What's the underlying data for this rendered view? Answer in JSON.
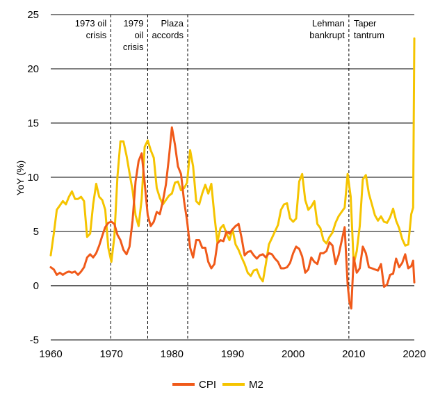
{
  "chart_data": {
    "type": "line",
    "title": "",
    "xlabel": "",
    "ylabel": "YoY (%)",
    "xlim": [
      1960,
      2020
    ],
    "ylim": [
      -5,
      25
    ],
    "x_ticks": [
      1960,
      1970,
      1980,
      1990,
      2000,
      2010,
      2020
    ],
    "y_ticks": [
      -5,
      0,
      5,
      10,
      15,
      20,
      25
    ],
    "grid": "horizontal",
    "legend": "bottom-center",
    "colors": {
      "CPI": "#f05a1a",
      "M2": "#f5c400"
    },
    "events": [
      {
        "year": 1969.9,
        "label": [
          "1973 oil",
          "crisis"
        ]
      },
      {
        "year": 1976.0,
        "label": [
          "1979",
          "oil",
          "crisis"
        ]
      },
      {
        "year": 1982.6,
        "label": [
          "Plaza",
          "accords"
        ]
      },
      {
        "year": 2009.2,
        "label": [
          "Lehman",
          "bankrupt"
        ]
      }
    ],
    "extra_labels": [
      {
        "label": [
          "Taper",
          "tantrum"
        ]
      }
    ],
    "series": [
      {
        "name": "CPI",
        "points": [
          [
            1960.0,
            1.7
          ],
          [
            1960.5,
            1.5
          ],
          [
            1961.0,
            1.0
          ],
          [
            1961.5,
            1.2
          ],
          [
            1962.0,
            1.0
          ],
          [
            1962.5,
            1.2
          ],
          [
            1963.0,
            1.3
          ],
          [
            1963.5,
            1.2
          ],
          [
            1964.0,
            1.3
          ],
          [
            1964.5,
            1.0
          ],
          [
            1965.0,
            1.3
          ],
          [
            1965.5,
            1.7
          ],
          [
            1966.0,
            2.6
          ],
          [
            1966.5,
            2.9
          ],
          [
            1967.0,
            2.6
          ],
          [
            1967.5,
            3.0
          ],
          [
            1968.0,
            3.7
          ],
          [
            1968.5,
            4.6
          ],
          [
            1969.0,
            5.4
          ],
          [
            1969.5,
            5.8
          ],
          [
            1970.0,
            5.9
          ],
          [
            1970.5,
            5.7
          ],
          [
            1971.0,
            4.7
          ],
          [
            1971.5,
            4.2
          ],
          [
            1972.0,
            3.3
          ],
          [
            1972.5,
            2.9
          ],
          [
            1973.0,
            3.6
          ],
          [
            1973.5,
            6.0
          ],
          [
            1974.0,
            9.6
          ],
          [
            1974.5,
            11.5
          ],
          [
            1975.0,
            12.2
          ],
          [
            1975.5,
            9.5
          ],
          [
            1976.0,
            6.5
          ],
          [
            1976.5,
            5.5
          ],
          [
            1977.0,
            5.9
          ],
          [
            1977.5,
            6.8
          ],
          [
            1978.0,
            6.6
          ],
          [
            1978.5,
            7.8
          ],
          [
            1979.0,
            9.3
          ],
          [
            1979.5,
            11.8
          ],
          [
            1980.0,
            14.6
          ],
          [
            1980.5,
            13.0
          ],
          [
            1981.0,
            11.0
          ],
          [
            1981.5,
            10.3
          ],
          [
            1982.0,
            7.8
          ],
          [
            1982.5,
            6.0
          ],
          [
            1983.0,
            3.5
          ],
          [
            1983.5,
            2.6
          ],
          [
            1984.0,
            4.2
          ],
          [
            1984.5,
            4.2
          ],
          [
            1985.0,
            3.5
          ],
          [
            1985.5,
            3.5
          ],
          [
            1986.0,
            2.2
          ],
          [
            1986.5,
            1.6
          ],
          [
            1987.0,
            2.0
          ],
          [
            1987.5,
            3.9
          ],
          [
            1988.0,
            4.2
          ],
          [
            1988.5,
            4.1
          ],
          [
            1989.0,
            5.0
          ],
          [
            1989.5,
            4.8
          ],
          [
            1990.0,
            5.2
          ],
          [
            1990.5,
            5.5
          ],
          [
            1991.0,
            5.7
          ],
          [
            1991.5,
            4.4
          ],
          [
            1992.0,
            2.8
          ],
          [
            1992.5,
            3.1
          ],
          [
            1993.0,
            3.2
          ],
          [
            1993.5,
            2.8
          ],
          [
            1994.0,
            2.5
          ],
          [
            1994.5,
            2.8
          ],
          [
            1995.0,
            2.9
          ],
          [
            1995.5,
            2.6
          ],
          [
            1996.0,
            3.0
          ],
          [
            1996.5,
            2.9
          ],
          [
            1997.0,
            2.5
          ],
          [
            1997.5,
            2.2
          ],
          [
            1998.0,
            1.6
          ],
          [
            1998.5,
            1.6
          ],
          [
            1999.0,
            1.7
          ],
          [
            1999.5,
            2.1
          ],
          [
            2000.0,
            3.0
          ],
          [
            2000.5,
            3.6
          ],
          [
            2001.0,
            3.4
          ],
          [
            2001.5,
            2.7
          ],
          [
            2002.0,
            1.2
          ],
          [
            2002.5,
            1.5
          ],
          [
            2003.0,
            2.6
          ],
          [
            2003.5,
            2.2
          ],
          [
            2004.0,
            2.0
          ],
          [
            2004.5,
            3.0
          ],
          [
            2005.0,
            3.0
          ],
          [
            2005.5,
            3.2
          ],
          [
            2006.0,
            4.0
          ],
          [
            2006.5,
            3.7
          ],
          [
            2007.0,
            2.0
          ],
          [
            2007.5,
            2.8
          ],
          [
            2008.0,
            4.1
          ],
          [
            2008.5,
            5.4
          ],
          [
            2009.0,
            0.1
          ],
          [
            2009.3,
            -1.5
          ],
          [
            2009.6,
            -2.1
          ],
          [
            2010.0,
            2.6
          ],
          [
            2010.5,
            1.2
          ],
          [
            2011.0,
            1.6
          ],
          [
            2011.5,
            3.6
          ],
          [
            2012.0,
            3.0
          ],
          [
            2012.5,
            1.7
          ],
          [
            2013.0,
            1.6
          ],
          [
            2013.5,
            1.5
          ],
          [
            2014.0,
            1.4
          ],
          [
            2014.5,
            2.0
          ],
          [
            2015.0,
            -0.1
          ],
          [
            2015.5,
            0.1
          ],
          [
            2016.0,
            1.0
          ],
          [
            2016.5,
            1.1
          ],
          [
            2017.0,
            2.5
          ],
          [
            2017.5,
            1.7
          ],
          [
            2018.0,
            2.1
          ],
          [
            2018.5,
            2.9
          ],
          [
            2019.0,
            1.6
          ],
          [
            2019.5,
            1.8
          ],
          [
            2019.8,
            2.3
          ],
          [
            2020.0,
            0.3
          ]
        ]
      },
      {
        "name": "M2",
        "points": [
          [
            1960.0,
            2.8
          ],
          [
            1960.5,
            4.8
          ],
          [
            1961.0,
            7.0
          ],
          [
            1961.5,
            7.4
          ],
          [
            1962.0,
            7.8
          ],
          [
            1962.5,
            7.5
          ],
          [
            1963.0,
            8.2
          ],
          [
            1963.5,
            8.7
          ],
          [
            1964.0,
            8.0
          ],
          [
            1964.5,
            8.0
          ],
          [
            1965.0,
            8.2
          ],
          [
            1965.5,
            7.8
          ],
          [
            1966.0,
            4.5
          ],
          [
            1966.5,
            4.8
          ],
          [
            1967.0,
            7.5
          ],
          [
            1967.5,
            9.4
          ],
          [
            1968.0,
            8.2
          ],
          [
            1968.5,
            7.9
          ],
          [
            1969.0,
            7.0
          ],
          [
            1969.5,
            3.5
          ],
          [
            1970.0,
            2.2
          ],
          [
            1970.5,
            4.5
          ],
          [
            1971.0,
            10.0
          ],
          [
            1971.5,
            13.3
          ],
          [
            1972.0,
            13.3
          ],
          [
            1972.5,
            12.0
          ],
          [
            1973.0,
            10.4
          ],
          [
            1973.5,
            8.8
          ],
          [
            1974.0,
            6.5
          ],
          [
            1974.5,
            5.5
          ],
          [
            1975.0,
            8.0
          ],
          [
            1975.5,
            12.8
          ],
          [
            1976.0,
            13.4
          ],
          [
            1976.5,
            12.5
          ],
          [
            1977.0,
            11.8
          ],
          [
            1977.5,
            9.0
          ],
          [
            1978.0,
            8.1
          ],
          [
            1978.5,
            7.5
          ],
          [
            1979.0,
            7.9
          ],
          [
            1979.5,
            8.3
          ],
          [
            1980.0,
            8.5
          ],
          [
            1980.5,
            9.5
          ],
          [
            1981.0,
            9.6
          ],
          [
            1981.5,
            8.8
          ],
          [
            1982.0,
            9.0
          ],
          [
            1982.5,
            9.5
          ],
          [
            1983.0,
            12.5
          ],
          [
            1983.5,
            11.0
          ],
          [
            1984.0,
            7.8
          ],
          [
            1984.5,
            7.5
          ],
          [
            1985.0,
            8.5
          ],
          [
            1985.5,
            9.3
          ],
          [
            1986.0,
            8.5
          ],
          [
            1986.5,
            9.4
          ],
          [
            1987.0,
            6.5
          ],
          [
            1987.5,
            4.0
          ],
          [
            1988.0,
            5.3
          ],
          [
            1988.5,
            5.6
          ],
          [
            1989.0,
            4.8
          ],
          [
            1989.5,
            4.2
          ],
          [
            1990.0,
            5.2
          ],
          [
            1990.5,
            3.8
          ],
          [
            1991.0,
            3.3
          ],
          [
            1991.5,
            2.6
          ],
          [
            1992.0,
            2.0
          ],
          [
            1992.5,
            1.2
          ],
          [
            1993.0,
            0.9
          ],
          [
            1993.5,
            1.4
          ],
          [
            1994.0,
            1.5
          ],
          [
            1994.5,
            0.8
          ],
          [
            1995.0,
            0.4
          ],
          [
            1995.5,
            2.0
          ],
          [
            1996.0,
            3.8
          ],
          [
            1996.5,
            4.4
          ],
          [
            1997.0,
            5.0
          ],
          [
            1997.5,
            5.6
          ],
          [
            1998.0,
            7.0
          ],
          [
            1998.5,
            7.5
          ],
          [
            1999.0,
            7.6
          ],
          [
            1999.5,
            6.2
          ],
          [
            2000.0,
            5.9
          ],
          [
            2000.5,
            6.2
          ],
          [
            2001.0,
            9.6
          ],
          [
            2001.5,
            10.3
          ],
          [
            2002.0,
            7.9
          ],
          [
            2002.5,
            7.0
          ],
          [
            2003.0,
            7.3
          ],
          [
            2003.5,
            7.8
          ],
          [
            2004.0,
            5.7
          ],
          [
            2004.5,
            5.3
          ],
          [
            2005.0,
            4.2
          ],
          [
            2005.5,
            3.9
          ],
          [
            2006.0,
            4.5
          ],
          [
            2006.5,
            4.9
          ],
          [
            2007.0,
            5.8
          ],
          [
            2007.5,
            6.4
          ],
          [
            2008.0,
            6.8
          ],
          [
            2008.5,
            7.2
          ],
          [
            2009.0,
            10.3
          ],
          [
            2009.5,
            8.2
          ],
          [
            2010.0,
            2.0
          ],
          [
            2010.5,
            3.2
          ],
          [
            2011.0,
            5.5
          ],
          [
            2011.5,
            9.8
          ],
          [
            2012.0,
            10.2
          ],
          [
            2012.5,
            8.5
          ],
          [
            2013.0,
            7.5
          ],
          [
            2013.5,
            6.5
          ],
          [
            2014.0,
            6.0
          ],
          [
            2014.5,
            6.4
          ],
          [
            2015.0,
            5.9
          ],
          [
            2015.5,
            5.8
          ],
          [
            2016.0,
            6.3
          ],
          [
            2016.5,
            7.1
          ],
          [
            2017.0,
            6.0
          ],
          [
            2017.5,
            5.3
          ],
          [
            2018.0,
            4.3
          ],
          [
            2018.5,
            3.7
          ],
          [
            2019.0,
            3.8
          ],
          [
            2019.5,
            6.6
          ],
          [
            2019.8,
            7.2
          ],
          [
            2020.0,
            22.8
          ]
        ]
      }
    ]
  }
}
